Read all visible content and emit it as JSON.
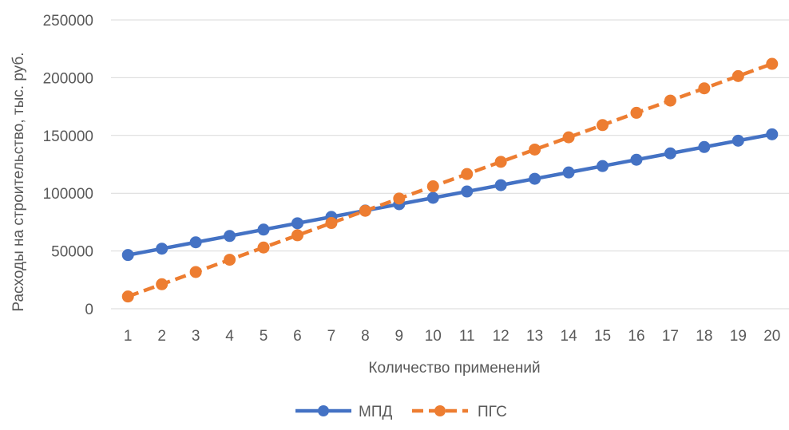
{
  "chart_data": {
    "type": "line",
    "title": "",
    "xlabel": "Количество применений",
    "ylabel": "Расходы на строительство, тыс. руб.",
    "categories": [
      "1",
      "2",
      "3",
      "4",
      "5",
      "6",
      "7",
      "8",
      "9",
      "10",
      "11",
      "12",
      "13",
      "14",
      "15",
      "16",
      "17",
      "18",
      "19",
      "20"
    ],
    "ylim": [
      0,
      250000
    ],
    "yticks": [
      "0",
      "50000",
      "100000",
      "150000",
      "200000",
      "250000"
    ],
    "grid": true,
    "legend_position": "bottom",
    "series": [
      {
        "name": "МПД",
        "color": "#4472C4",
        "dash": "solid",
        "values": [
          46500,
          52000,
          57500,
          63000,
          68500,
          74000,
          79500,
          85000,
          90500,
          96000,
          101500,
          107000,
          112500,
          118000,
          123500,
          129000,
          134500,
          140000,
          145500,
          151000
        ]
      },
      {
        "name": "ПГС",
        "color": "#ED7D31",
        "dash": "dashed",
        "values": [
          10600,
          21200,
          31800,
          42400,
          53000,
          63600,
          74200,
          84800,
          95400,
          106000,
          116600,
          127200,
          137800,
          148400,
          159000,
          169600,
          180200,
          190800,
          201400,
          212000
        ]
      }
    ]
  }
}
